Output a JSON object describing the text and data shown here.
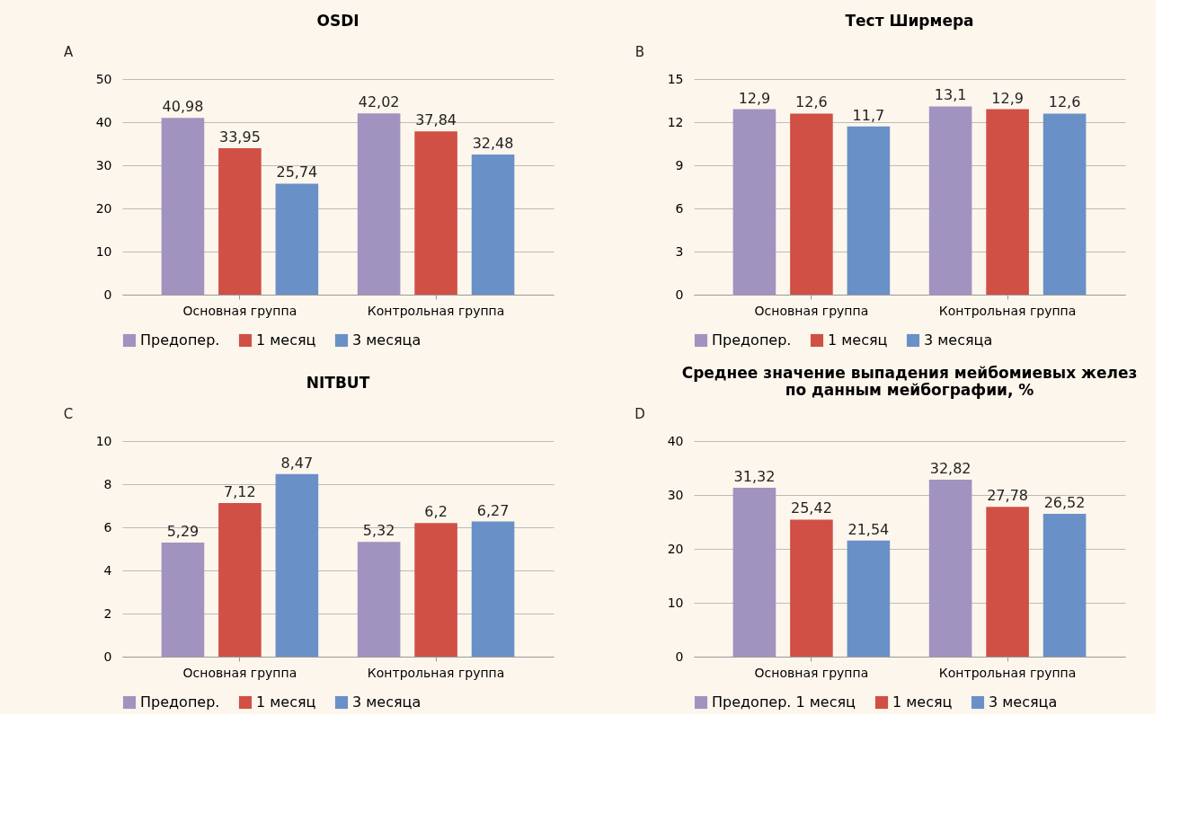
{
  "chart_data": [
    {
      "type": "bar",
      "title": "OSDI",
      "annotations": [
        "A"
      ],
      "categories": [
        "Основная группа",
        "Контрольная группа"
      ],
      "ylim": [
        0,
        50
      ],
      "yticks": [
        0,
        10,
        20,
        30,
        40,
        50
      ],
      "grid": "y",
      "legend": "bottom",
      "series": [
        {
          "name": "Предопер.",
          "color": "#a093c0",
          "values": [
            40.98,
            42.02
          ],
          "value_labels": [
            "40,98",
            "42,02"
          ]
        },
        {
          "name": "1 месяц",
          "color": "#d05045",
          "values": [
            33.95,
            37.84
          ],
          "value_labels": [
            "33,95",
            "37,84"
          ]
        },
        {
          "name": "3 месяца",
          "color": "#6a90c8",
          "values": [
            25.74,
            32.48
          ],
          "value_labels": [
            "25,74",
            "32,48"
          ]
        }
      ]
    },
    {
      "type": "bar",
      "title": "Тест Ширмера",
      "annotations": [
        "B"
      ],
      "categories": [
        "Основная группа",
        "Контрольная группа"
      ],
      "ylim": [
        0,
        15
      ],
      "yticks": [
        0,
        3,
        6,
        9,
        12,
        15
      ],
      "grid": "y",
      "legend": "bottom",
      "series": [
        {
          "name": "Предопер.",
          "color": "#a093c0",
          "values": [
            12.9,
            13.1
          ],
          "value_labels": [
            "12,9",
            "13,1"
          ]
        },
        {
          "name": "1 месяц",
          "color": "#d05045",
          "values": [
            12.6,
            12.9
          ],
          "value_labels": [
            "12,6",
            "12,9"
          ]
        },
        {
          "name": "3 месяца",
          "color": "#6a90c8",
          "values": [
            11.7,
            12.6
          ],
          "value_labels": [
            "11,7",
            "12,6"
          ]
        }
      ]
    },
    {
      "type": "bar",
      "title": "NITBUT",
      "annotations": [
        "C"
      ],
      "categories": [
        "Основная группа",
        "Контрольная группа"
      ],
      "ylim": [
        0,
        10
      ],
      "yticks": [
        0,
        2,
        4,
        6,
        8,
        10
      ],
      "grid": "y",
      "legend": "bottom",
      "series": [
        {
          "name": "Предопер.",
          "color": "#a093c0",
          "values": [
            5.29,
            5.32
          ],
          "value_labels": [
            "5,29",
            "5,32"
          ]
        },
        {
          "name": "1 месяц",
          "color": "#d05045",
          "values": [
            7.12,
            6.2
          ],
          "value_labels": [
            "7,12",
            "6,2"
          ]
        },
        {
          "name": "3 месяца",
          "color": "#6a90c8",
          "values": [
            8.47,
            6.27
          ],
          "value_labels": [
            "8,47",
            "6,27"
          ]
        }
      ]
    },
    {
      "type": "bar",
      "title": "Среднее значение выпадения мейбомиевых желез\nпо данным мейбографии, %",
      "annotations": [
        "D"
      ],
      "categories": [
        "Основная группа",
        "Контрольная группа"
      ],
      "ylim": [
        0,
        40
      ],
      "yticks": [
        0,
        10,
        20,
        30,
        40
      ],
      "grid": "y",
      "legend": "bottom",
      "series": [
        {
          "name": "Предопер. 1 месяц",
          "color": "#a093c0",
          "values": [
            31.32,
            32.82
          ],
          "value_labels": [
            "31,32",
            "32,82"
          ]
        },
        {
          "name": "1 месяц",
          "color": "#d05045",
          "values": [
            25.42,
            27.78
          ],
          "value_labels": [
            "25,42",
            "27,78"
          ]
        },
        {
          "name": "3 месяца",
          "color": "#6a90c8",
          "values": [
            21.54,
            26.52
          ],
          "value_labels": [
            "21,54",
            "26,52"
          ]
        }
      ]
    }
  ]
}
